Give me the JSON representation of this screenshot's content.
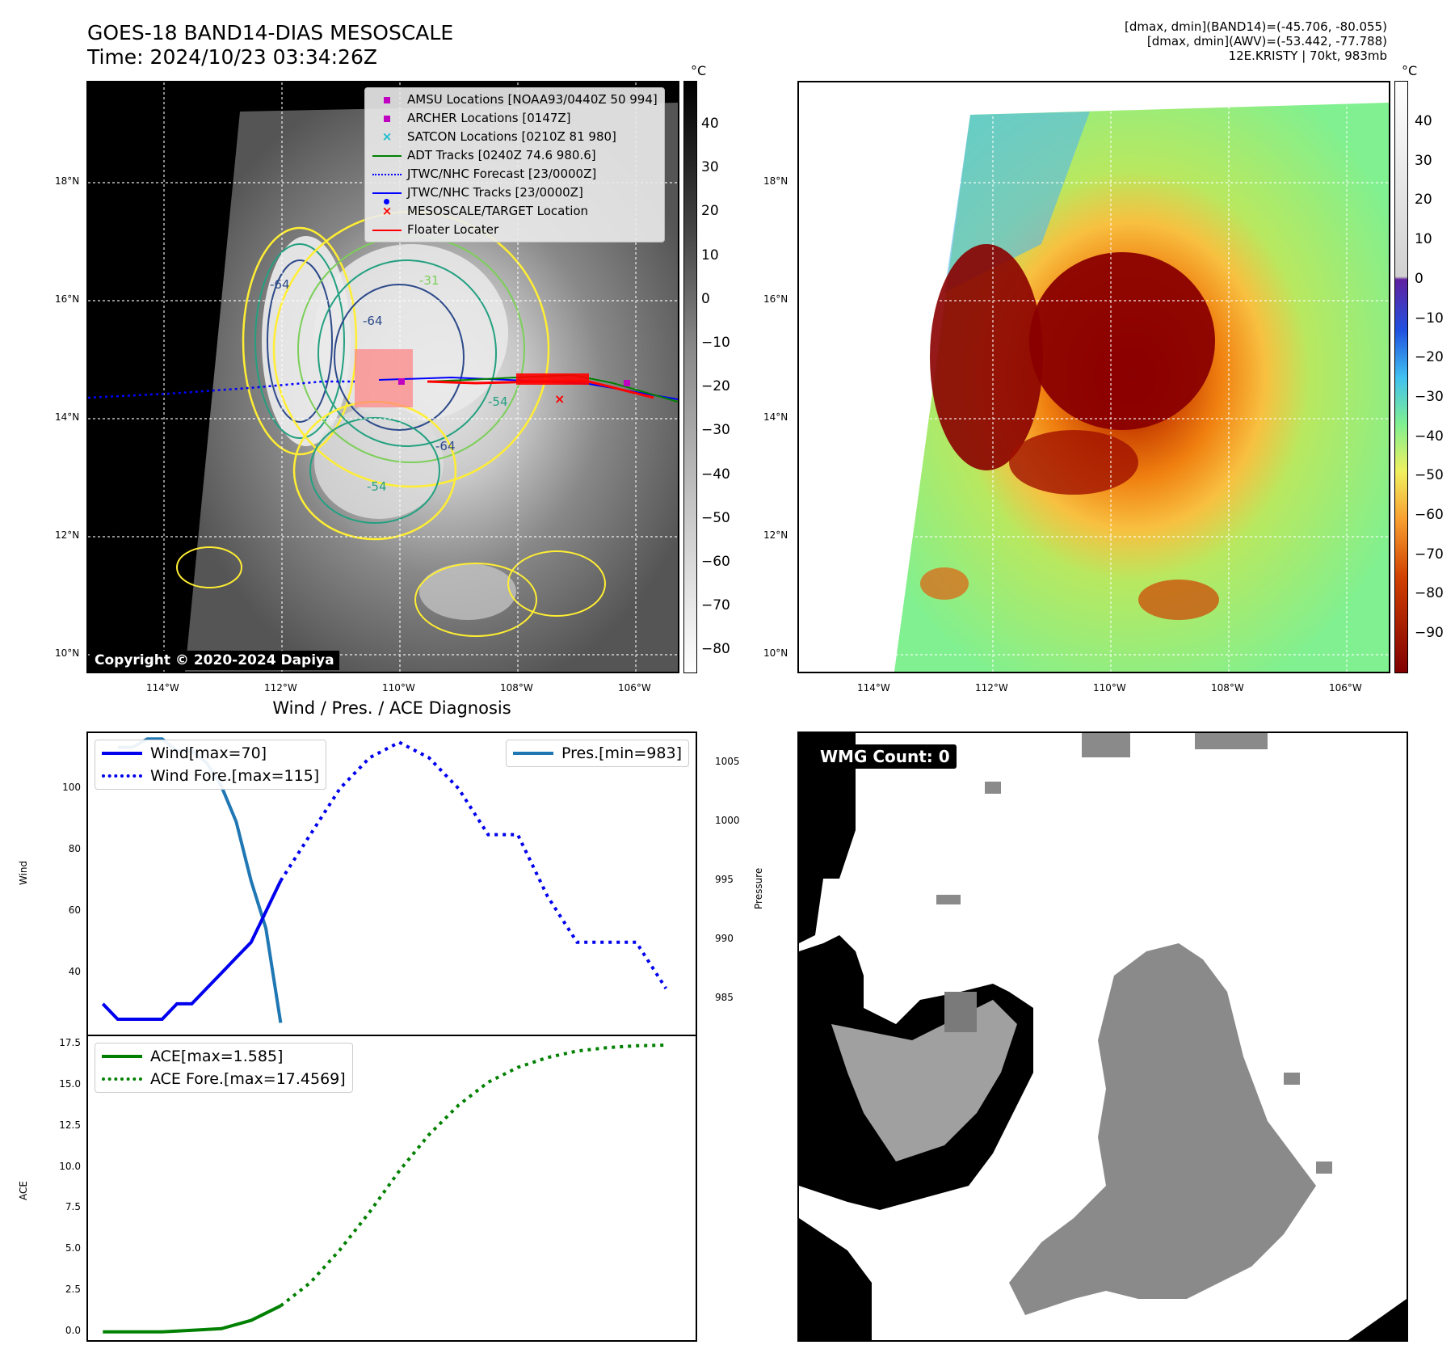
{
  "header": {
    "title_line1": "GOES-18 BAND14-DIAS MESOSCALE",
    "title_line2": "Time: 2024/10/23 03:34:26Z",
    "meta_line1": "[dmax, dmin](BAND14)=(-45.706, -80.055)",
    "meta_line2": "[dmax, dmin](AWV)=(-53.442, -77.788)",
    "meta_line3": "12E.KRISTY | 70kt, 983mb"
  },
  "map": {
    "lat_ticks": [
      "18°N",
      "16°N",
      "14°N",
      "12°N",
      "10°N"
    ],
    "lon_ticks": [
      "114°W",
      "112°W",
      "110°W",
      "108°W",
      "106°W"
    ],
    "copyright": "Copyright © 2020-2024 Dapiya",
    "contour_labels": [
      "-64",
      "-64",
      "-64",
      "-54",
      "-54",
      "-31"
    ],
    "colorbar_unit": "°C",
    "colorbar_ticks_gray": [
      "40",
      "30",
      "20",
      "10",
      "0",
      "−10",
      "−20",
      "−30",
      "−40",
      "−50",
      "−60",
      "−70",
      "−80"
    ],
    "colorbar_ticks_color": [
      "40",
      "30",
      "20",
      "10",
      "0",
      "−10",
      "−20",
      "−30",
      "−40",
      "−50",
      "−60",
      "−70",
      "−80",
      "−90"
    ],
    "legend": [
      {
        "label": "AMSU Locations [NOAA93/0440Z 50 994]",
        "icon": "square-marker",
        "color": "#c000c0"
      },
      {
        "label": "ARCHER Locations [0147Z]",
        "icon": "square-marker",
        "color": "#c000c0"
      },
      {
        "label": "SATCON Locations [0210Z 81 980]",
        "icon": "x-marker",
        "color": "#17becf"
      },
      {
        "label": "ADT Tracks [0240Z 74.6 980.6]",
        "icon": "line",
        "color": "#008000"
      },
      {
        "label": "JTWC/NHC Forecast [23/0000Z]",
        "icon": "dotted-line",
        "color": "#0000ff"
      },
      {
        "label": "JTWC/NHC Tracks [23/0000Z]",
        "icon": "line-dot",
        "color": "#0000ff"
      },
      {
        "label": "MESOSCALE/TARGET Location",
        "icon": "x-marker",
        "color": "#ff0000"
      },
      {
        "label": "Floater Locater",
        "icon": "line",
        "color": "#ff0000"
      }
    ]
  },
  "wind_panel": {
    "title": "Wind / Pres. / ACE Diagnosis",
    "legend_wind": "Wind[max=70]",
    "legend_wind_fore": "Wind Fore.[max=115]",
    "legend_pres": "Pres.[min=983]",
    "legend_ace": "ACE[max=1.585]",
    "legend_ace_fore": "ACE Fore.[max=17.4569]",
    "ylabel_wind": "Wind",
    "ylabel_pres": "Pressure",
    "ylabel_ace": "ACE",
    "wind_ticks": [
      "100",
      "80",
      "60",
      "40"
    ],
    "pres_ticks": [
      "1005",
      "1000",
      "995",
      "990",
      "985"
    ],
    "ace_ticks": [
      "17.5",
      "15.0",
      "12.5",
      "10.0",
      "7.5",
      "5.0",
      "2.5",
      "0.0"
    ]
  },
  "wmg_panel": {
    "label": "WMG Count: 0"
  },
  "chart_data": {
    "type": "line",
    "title": "Wind / Pres. / ACE Diagnosis",
    "wind": {
      "name": "Wind[max=70]",
      "x": [
        0,
        1,
        2,
        3,
        4,
        5,
        6,
        7,
        8,
        9,
        10,
        11,
        12
      ],
      "values": [
        30,
        25,
        25,
        25,
        25,
        30,
        30,
        35,
        40,
        45,
        50,
        60,
        70
      ],
      "color": "#0000ee"
    },
    "wind_forecast": {
      "name": "Wind Fore.[max=115]",
      "x": [
        12,
        14,
        16,
        18,
        20,
        22,
        24,
        26,
        28,
        30,
        32,
        34,
        36,
        38
      ],
      "values": [
        70,
        85,
        100,
        110,
        115,
        110,
        100,
        85,
        85,
        65,
        50,
        50,
        50,
        35
      ],
      "color": "#0000ee"
    },
    "pressure": {
      "name": "Pres.[min=983]",
      "x": [
        1,
        2,
        3,
        4,
        5,
        6,
        7,
        8,
        9,
        10,
        11,
        12
      ],
      "values": [
        1006.3,
        1006.3,
        1007,
        1007,
        1006,
        1006,
        1005,
        1003,
        1000,
        995,
        991,
        983
      ],
      "color": "#1f77b4"
    },
    "ace": {
      "name": "ACE[max=1.585]",
      "x": [
        0,
        4,
        8,
        10,
        12
      ],
      "values": [
        0,
        0,
        0.2,
        0.7,
        1.585
      ],
      "color": "#008000"
    },
    "ace_forecast": {
      "name": "ACE Fore.[max=17.4569]",
      "x": [
        12,
        14,
        16,
        18,
        20,
        22,
        24,
        26,
        28,
        30,
        32,
        34,
        36,
        38
      ],
      "values": [
        1.585,
        3.0,
        5.0,
        7.3,
        9.8,
        12.0,
        13.8,
        15.2,
        16.1,
        16.7,
        17.1,
        17.3,
        17.42,
        17.4569
      ],
      "color": "#008000"
    },
    "wind_ylim": [
      20,
      118
    ],
    "pres_ylim": [
      982,
      1007.5
    ],
    "ace_ylim": [
      -0.5,
      18
    ]
  }
}
